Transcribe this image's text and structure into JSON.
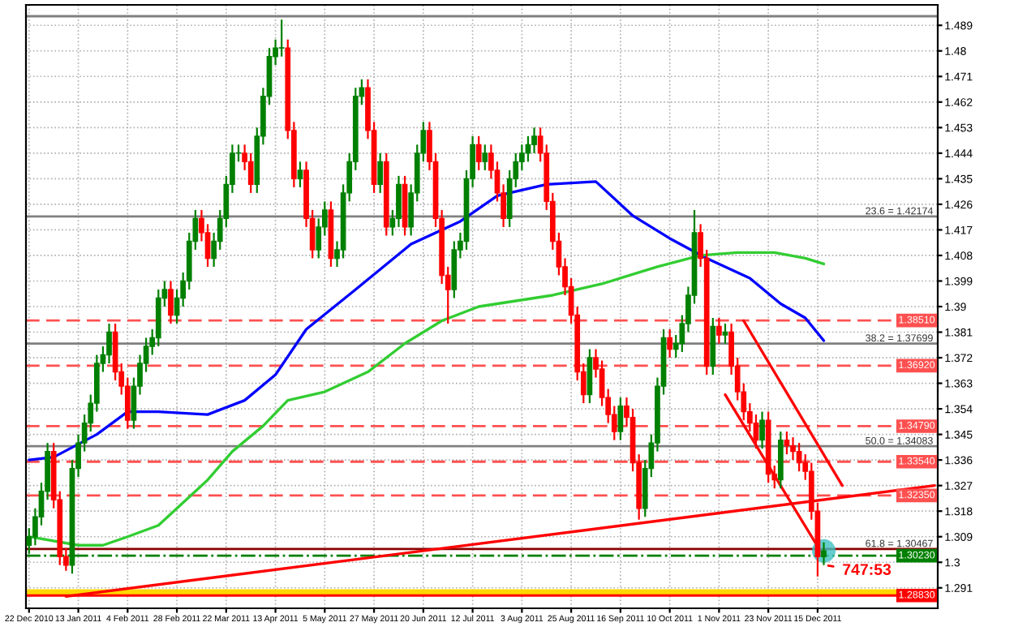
{
  "chart_data": {
    "type": "candlestick",
    "categories": [
      "22 Dec 2010",
      null,
      null,
      null,
      null,
      null,
      null,
      null,
      "13 Jan 2011",
      null,
      null,
      null,
      null,
      null,
      null,
      null,
      "4 Feb 2011",
      null,
      null,
      null,
      null,
      null,
      null,
      null,
      "28 Feb 2011",
      null,
      null,
      null,
      null,
      null,
      null,
      null,
      "22 Mar 2011",
      null,
      null,
      null,
      null,
      null,
      null,
      null,
      "13 Apr 2011",
      null,
      null,
      null,
      null,
      null,
      null,
      null,
      "5 May 2011",
      null,
      null,
      null,
      null,
      null,
      null,
      null,
      "27 May 2011",
      null,
      null,
      null,
      null,
      null,
      null,
      null,
      "20 Jun 2011",
      null,
      null,
      null,
      null,
      null,
      null,
      null,
      "12 Jul 2011",
      null,
      null,
      null,
      null,
      null,
      null,
      null,
      "3 Aug 2011",
      null,
      null,
      null,
      null,
      null,
      null,
      null,
      "25 Aug 2011",
      null,
      null,
      null,
      null,
      null,
      null,
      null,
      "16 Sep 2011",
      null,
      null,
      null,
      null,
      null,
      null,
      null,
      "10 Oct 2011",
      null,
      null,
      null,
      null,
      null,
      null,
      null,
      "1 Nov 2011",
      null,
      null,
      null,
      null,
      null,
      null,
      null,
      "23 Nov 2011",
      null,
      null,
      null,
      null,
      null,
      null,
      null,
      "15 Dec 2011",
      null,
      null,
      null,
      null,
      null,
      null,
      null,
      null,
      null,
      null,
      null,
      null,
      null,
      null,
      null,
      null,
      null,
      null,
      null
    ],
    "ohlc": [
      [
        1.306,
        1.312,
        1.303,
        1.309
      ],
      [
        1.309,
        1.319,
        1.306,
        1.316
      ],
      [
        1.316,
        1.328,
        1.313,
        1.325
      ],
      [
        1.325,
        1.342,
        1.322,
        1.339
      ],
      [
        1.339,
        1.342,
        1.319,
        1.322
      ],
      [
        1.322,
        1.325,
        1.299,
        1.302
      ],
      [
        1.302,
        1.305,
        1.297,
        1.299
      ],
      [
        1.299,
        1.336,
        1.296,
        1.333
      ],
      [
        1.333,
        1.345,
        1.33,
        1.342
      ],
      [
        1.342,
        1.352,
        1.339,
        1.349
      ],
      [
        1.349,
        1.359,
        1.346,
        1.356
      ],
      [
        1.356,
        1.373,
        1.353,
        1.37
      ],
      [
        1.37,
        1.376,
        1.367,
        1.373
      ],
      [
        1.373,
        1.384,
        1.37,
        1.381
      ],
      [
        1.381,
        1.384,
        1.364,
        1.367
      ],
      [
        1.367,
        1.37,
        1.359,
        1.362
      ],
      [
        1.362,
        1.365,
        1.347,
        1.35
      ],
      [
        1.35,
        1.365,
        1.347,
        1.362
      ],
      [
        1.362,
        1.373,
        1.359,
        1.37
      ],
      [
        1.37,
        1.379,
        1.367,
        1.376
      ],
      [
        1.376,
        1.382,
        1.373,
        1.379
      ],
      [
        1.379,
        1.396,
        1.376,
        1.393
      ],
      [
        1.393,
        1.399,
        1.39,
        1.396
      ],
      [
        1.396,
        1.399,
        1.384,
        1.387
      ],
      [
        1.387,
        1.396,
        1.384,
        1.393
      ],
      [
        1.393,
        1.402,
        1.39,
        1.399
      ],
      [
        1.399,
        1.416,
        1.396,
        1.413
      ],
      [
        1.413,
        1.424,
        1.41,
        1.421
      ],
      [
        1.421,
        1.424,
        1.413,
        1.416
      ],
      [
        1.416,
        1.419,
        1.404,
        1.407
      ],
      [
        1.407,
        1.416,
        1.404,
        1.413
      ],
      [
        1.413,
        1.424,
        1.41,
        1.421
      ],
      [
        1.421,
        1.436,
        1.418,
        1.433
      ],
      [
        1.433,
        1.447,
        1.43,
        1.444
      ],
      [
        1.444,
        1.447,
        1.441,
        1.444
      ],
      [
        1.444,
        1.447,
        1.438,
        1.441
      ],
      [
        1.441,
        1.444,
        1.43,
        1.433
      ],
      [
        1.433,
        1.453,
        1.43,
        1.45
      ],
      [
        1.45,
        1.467,
        1.447,
        1.464
      ],
      [
        1.464,
        1.481,
        1.461,
        1.478
      ],
      [
        1.478,
        1.484,
        1.475,
        1.481
      ],
      [
        1.481,
        1.491,
        1.478,
        1.481
      ],
      [
        1.481,
        1.484,
        1.449,
        1.452
      ],
      [
        1.452,
        1.455,
        1.432,
        1.435
      ],
      [
        1.435,
        1.441,
        1.432,
        1.438
      ],
      [
        1.438,
        1.441,
        1.418,
        1.421
      ],
      [
        1.421,
        1.424,
        1.407,
        1.41
      ],
      [
        1.41,
        1.421,
        1.407,
        1.418
      ],
      [
        1.418,
        1.427,
        1.415,
        1.424
      ],
      [
        1.424,
        1.427,
        1.404,
        1.407
      ],
      [
        1.407,
        1.413,
        1.404,
        1.41
      ],
      [
        1.41,
        1.433,
        1.407,
        1.43
      ],
      [
        1.43,
        1.444,
        1.427,
        1.441
      ],
      [
        1.441,
        1.467,
        1.438,
        1.464
      ],
      [
        1.464,
        1.47,
        1.461,
        1.467
      ],
      [
        1.467,
        1.47,
        1.449,
        1.452
      ],
      [
        1.452,
        1.455,
        1.43,
        1.433
      ],
      [
        1.433,
        1.444,
        1.43,
        1.441
      ],
      [
        1.441,
        1.444,
        1.415,
        1.418
      ],
      [
        1.418,
        1.424,
        1.415,
        1.421
      ],
      [
        1.421,
        1.436,
        1.418,
        1.433
      ],
      [
        1.433,
        1.436,
        1.415,
        1.418
      ],
      [
        1.418,
        1.433,
        1.415,
        1.43
      ],
      [
        1.43,
        1.447,
        1.427,
        1.444
      ],
      [
        1.444,
        1.455,
        1.441,
        1.452
      ],
      [
        1.452,
        1.455,
        1.438,
        1.441
      ],
      [
        1.441,
        1.444,
        1.418,
        1.421
      ],
      [
        1.421,
        1.424,
        1.398,
        1.401
      ],
      [
        1.401,
        1.404,
        1.384,
        1.396
      ],
      [
        1.396,
        1.413,
        1.393,
        1.41
      ],
      [
        1.41,
        1.416,
        1.407,
        1.413
      ],
      [
        1.413,
        1.438,
        1.41,
        1.435
      ],
      [
        1.435,
        1.45,
        1.432,
        1.447
      ],
      [
        1.447,
        1.45,
        1.438,
        1.441
      ],
      [
        1.441,
        1.447,
        1.438,
        1.444
      ],
      [
        1.444,
        1.447,
        1.435,
        1.438
      ],
      [
        1.438,
        1.441,
        1.427,
        1.43
      ],
      [
        1.43,
        1.433,
        1.418,
        1.421
      ],
      [
        1.421,
        1.438,
        1.418,
        1.435
      ],
      [
        1.435,
        1.444,
        1.432,
        1.441
      ],
      [
        1.441,
        1.447,
        1.438,
        1.444
      ],
      [
        1.444,
        1.45,
        1.441,
        1.447
      ],
      [
        1.447,
        1.453,
        1.444,
        1.45
      ],
      [
        1.45,
        1.453,
        1.441,
        1.444
      ],
      [
        1.444,
        1.447,
        1.424,
        1.427
      ],
      [
        1.427,
        1.43,
        1.41,
        1.413
      ],
      [
        1.413,
        1.416,
        1.401,
        1.404
      ],
      [
        1.404,
        1.407,
        1.394,
        1.397
      ],
      [
        1.397,
        1.4,
        1.384,
        1.387
      ],
      [
        1.387,
        1.39,
        1.364,
        1.367
      ],
      [
        1.367,
        1.37,
        1.356,
        1.359
      ],
      [
        1.359,
        1.375,
        1.356,
        1.372
      ],
      [
        1.372,
        1.375,
        1.365,
        1.368
      ],
      [
        1.368,
        1.371,
        1.355,
        1.358
      ],
      [
        1.358,
        1.361,
        1.349,
        1.352
      ],
      [
        1.352,
        1.355,
        1.343,
        1.346
      ],
      [
        1.346,
        1.358,
        1.343,
        1.355
      ],
      [
        1.355,
        1.358,
        1.348,
        1.351
      ],
      [
        1.351,
        1.354,
        1.332,
        1.335
      ],
      [
        1.335,
        1.338,
        1.315,
        1.319
      ],
      [
        1.319,
        1.336,
        1.316,
        1.333
      ],
      [
        1.333,
        1.345,
        1.33,
        1.342
      ],
      [
        1.342,
        1.365,
        1.339,
        1.362
      ],
      [
        1.362,
        1.382,
        1.359,
        1.379
      ],
      [
        1.379,
        1.382,
        1.372,
        1.375
      ],
      [
        1.375,
        1.38,
        1.372,
        1.377
      ],
      [
        1.377,
        1.387,
        1.374,
        1.384
      ],
      [
        1.384,
        1.397,
        1.381,
        1.394
      ],
      [
        1.394,
        1.424,
        1.391,
        1.416
      ],
      [
        1.416,
        1.419,
        1.404,
        1.407
      ],
      [
        1.407,
        1.41,
        1.366,
        1.369
      ],
      [
        1.369,
        1.386,
        1.366,
        1.383
      ],
      [
        1.383,
        1.386,
        1.377,
        1.38
      ],
      [
        1.38,
        1.384,
        1.377,
        1.381
      ],
      [
        1.381,
        1.384,
        1.366,
        1.369
      ],
      [
        1.369,
        1.372,
        1.357,
        1.36
      ],
      [
        1.36,
        1.363,
        1.35,
        1.353
      ],
      [
        1.353,
        1.356,
        1.346,
        1.349
      ],
      [
        1.349,
        1.352,
        1.34,
        1.343
      ],
      [
        1.343,
        1.353,
        1.34,
        1.35
      ],
      [
        1.35,
        1.353,
        1.328,
        1.331
      ],
      [
        1.331,
        1.334,
        1.326,
        1.329
      ],
      [
        1.329,
        1.346,
        1.326,
        1.343
      ],
      [
        1.343,
        1.346,
        1.338,
        1.341
      ],
      [
        1.341,
        1.344,
        1.336,
        1.339
      ],
      [
        1.339,
        1.342,
        1.332,
        1.335
      ],
      [
        1.335,
        1.338,
        1.329,
        1.332
      ],
      [
        1.332,
        1.335,
        1.315,
        1.318
      ],
      [
        1.318,
        1.321,
        1.295,
        1.302
      ],
      [
        1.302,
        1.307,
        1.299,
        1.304
      ],
      null,
      null,
      null,
      null,
      null,
      null,
      null,
      null,
      null,
      null,
      null,
      null,
      null,
      null,
      null,
      null,
      null,
      null
    ],
    "series": [
      {
        "type": "line",
        "color": "#0000ff",
        "values": [
          1.336,
          null,
          null,
          null,
          1.337,
          null,
          null,
          null,
          null,
          null,
          null,
          1.345,
          null,
          null,
          null,
          null,
          1.353,
          null,
          null,
          null,
          null,
          1.353,
          null,
          null,
          null,
          null,
          null,
          null,
          null,
          1.352,
          null,
          null,
          null,
          null,
          null,
          1.357,
          null,
          null,
          null,
          null,
          1.366,
          null,
          null,
          null,
          null,
          1.382,
          null,
          null,
          null,
          null,
          null,
          null,
          null,
          1.396,
          null,
          null,
          null,
          null,
          null,
          null,
          null,
          null,
          1.412,
          null,
          null,
          null,
          null,
          null,
          null,
          null,
          1.42,
          null,
          null,
          null,
          null,
          null,
          1.429,
          null,
          null,
          null,
          null,
          null,
          null,
          null,
          1.433,
          null,
          null,
          null,
          null,
          null,
          null,
          null,
          1.434,
          null,
          null,
          null,
          null,
          null,
          1.422,
          null,
          null,
          null,
          null,
          null,
          1.414,
          null,
          null,
          null,
          null,
          null,
          1.407,
          null,
          null,
          null,
          null,
          null,
          null,
          1.4,
          null,
          null,
          null,
          null,
          1.391,
          null,
          null,
          null,
          1.386,
          null,
          null,
          1.378,
          null,
          null,
          null,
          null,
          null,
          null,
          null,
          null,
          null,
          null,
          null,
          null,
          null,
          null,
          null,
          null,
          null,
          null
        ]
      },
      {
        "type": "line",
        "color": "#32cd32",
        "values": [
          1.309,
          null,
          null,
          null,
          null,
          null,
          null,
          null,
          1.306,
          null,
          null,
          null,
          1.306,
          null,
          null,
          null,
          1.309,
          null,
          null,
          null,
          null,
          1.313,
          null,
          null,
          null,
          1.321,
          null,
          null,
          null,
          1.329,
          null,
          null,
          null,
          1.339,
          null,
          null,
          null,
          null,
          1.348,
          null,
          null,
          null,
          1.357,
          null,
          null,
          null,
          null,
          null,
          1.36,
          null,
          null,
          null,
          null,
          null,
          null,
          1.367,
          null,
          null,
          null,
          null,
          null,
          1.377,
          null,
          null,
          null,
          null,
          null,
          1.385,
          null,
          null,
          null,
          null,
          null,
          1.39,
          null,
          null,
          null,
          null,
          null,
          1.392,
          null,
          null,
          null,
          null,
          null,
          1.394,
          null,
          null,
          null,
          null,
          null,
          null,
          null,
          1.398,
          null,
          null,
          null,
          null,
          null,
          null,
          null,
          null,
          1.404,
          null,
          null,
          null,
          null,
          null,
          null,
          1.408,
          null,
          null,
          null,
          null,
          null,
          1.409,
          null,
          null,
          null,
          null,
          null,
          1.409,
          null,
          null,
          null,
          null,
          1.407,
          null,
          null,
          1.405,
          null,
          null,
          null,
          null,
          null,
          null,
          null,
          null,
          null,
          null,
          null,
          null,
          null,
          null,
          null,
          null,
          null,
          null
        ]
      },
      {
        "type": "line",
        "color": "#ff0000",
        "values": [
          null,
          null,
          null,
          null,
          null,
          null,
          1.288,
          null,
          null,
          null,
          null,
          null,
          null,
          null,
          null,
          null,
          null,
          null,
          null,
          null,
          null,
          null,
          null,
          null,
          null,
          null,
          null,
          null,
          null,
          null,
          null,
          null,
          null,
          null,
          null,
          null,
          null,
          null,
          null,
          null,
          null,
          null,
          null,
          null,
          null,
          null,
          null,
          null,
          null,
          null,
          null,
          null,
          null,
          null,
          null,
          null,
          null,
          null,
          null,
          null,
          null,
          null,
          null,
          null,
          null,
          null,
          null,
          null,
          null,
          null,
          null,
          null,
          null,
          null,
          null,
          null,
          null,
          null,
          null,
          null,
          null,
          null,
          null,
          null,
          null,
          null,
          null,
          null,
          null,
          null,
          null,
          null,
          null,
          null,
          null,
          null,
          null,
          null,
          null,
          null,
          null,
          null,
          null,
          null,
          null,
          null,
          null,
          null,
          null,
          null,
          null,
          null,
          null,
          null,
          null,
          null,
          null,
          null,
          null,
          null,
          null,
          null,
          null,
          null,
          null,
          null,
          null,
          null,
          null,
          null,
          null,
          null,
          null,
          null,
          null,
          null,
          null,
          null,
          null,
          null,
          null,
          null,
          null,
          null,
          null,
          null,
          null,
          1.327
        ]
      },
      {
        "type": "line",
        "color": "#ff0000",
        "values": [
          null,
          null,
          null,
          null,
          null,
          null,
          null,
          null,
          null,
          null,
          null,
          null,
          null,
          null,
          null,
          null,
          null,
          null,
          null,
          null,
          null,
          null,
          null,
          null,
          null,
          null,
          null,
          null,
          null,
          null,
          null,
          null,
          null,
          null,
          null,
          null,
          null,
          null,
          null,
          null,
          null,
          null,
          null,
          null,
          null,
          null,
          null,
          null,
          null,
          null,
          null,
          null,
          null,
          null,
          null,
          null,
          null,
          null,
          null,
          null,
          null,
          null,
          null,
          null,
          null,
          null,
          null,
          null,
          null,
          null,
          null,
          null,
          null,
          null,
          null,
          null,
          null,
          null,
          null,
          null,
          null,
          null,
          null,
          null,
          null,
          null,
          null,
          null,
          null,
          null,
          null,
          null,
          null,
          null,
          null,
          null,
          null,
          null,
          null,
          null,
          null,
          null,
          null,
          null,
          null,
          null,
          null,
          null,
          null,
          null,
          null,
          null,
          null,
          1.359,
          null,
          null,
          null,
          null,
          null,
          null,
          null,
          null,
          null,
          null,
          null,
          null,
          null,
          null,
          null,
          1.302,
          null,
          null,
          null,
          null,
          null,
          null,
          null,
          null,
          null,
          null,
          null,
          null,
          null,
          null,
          null,
          null,
          null,
          null
        ]
      },
      {
        "type": "line",
        "color": "#ff0000",
        "values": [
          null,
          null,
          null,
          null,
          null,
          null,
          null,
          null,
          null,
          null,
          null,
          null,
          null,
          null,
          null,
          null,
          null,
          null,
          null,
          null,
          null,
          null,
          null,
          null,
          null,
          null,
          null,
          null,
          null,
          null,
          null,
          null,
          null,
          null,
          null,
          null,
          null,
          null,
          null,
          null,
          null,
          null,
          null,
          null,
          null,
          null,
          null,
          null,
          null,
          null,
          null,
          null,
          null,
          null,
          null,
          null,
          null,
          null,
          null,
          null,
          null,
          null,
          null,
          null,
          null,
          null,
          null,
          null,
          null,
          null,
          null,
          null,
          null,
          null,
          null,
          null,
          null,
          null,
          null,
          null,
          null,
          null,
          null,
          null,
          null,
          null,
          null,
          null,
          null,
          null,
          null,
          null,
          null,
          null,
          null,
          null,
          null,
          null,
          null,
          null,
          null,
          null,
          null,
          null,
          null,
          null,
          null,
          null,
          null,
          null,
          null,
          null,
          null,
          null,
          null,
          null,
          1.385,
          null,
          null,
          null,
          null,
          null,
          null,
          null,
          null,
          null,
          null,
          null,
          null,
          null,
          null,
          null,
          1.327,
          null,
          null,
          null,
          null,
          null,
          null,
          null,
          null,
          null,
          null,
          null,
          null,
          null,
          null,
          null
        ]
      }
    ],
    "ylim": [
      1.2838,
      1.4962
    ],
    "yticks": [
      1.291,
      1.3,
      1.309,
      1.318,
      1.327,
      1.336,
      1.345,
      1.354,
      1.363,
      1.372,
      1.381,
      1.39,
      1.399,
      1.408,
      1.417,
      1.426,
      1.435,
      1.444,
      1.453,
      1.462,
      1.471,
      1.48,
      1.489
    ],
    "grid": true,
    "ref_lines": [
      {
        "axis": "y",
        "value": 1.4922,
        "color": "#808080",
        "line_style": "solid"
      },
      {
        "axis": "y",
        "value": 1.42174,
        "label": "23.6 = 1.42174",
        "color": "#808080",
        "line_style": "solid"
      },
      {
        "axis": "y",
        "value": 1.37699,
        "label": "38.2 = 1.37699",
        "color": "#808080",
        "line_style": "solid"
      },
      {
        "axis": "y",
        "value": 1.34083,
        "label": "50.0 = 1.34083",
        "color": "#808080",
        "line_style": "solid"
      },
      {
        "axis": "y",
        "value": 1.30467,
        "label": "61.8 = 1.30467",
        "color": "#8b0000",
        "line_style": "solid"
      },
      {
        "axis": "y",
        "value": 1.3851,
        "label": "1.38510",
        "color": "#ff5050",
        "line_style": "dashed"
      },
      {
        "axis": "y",
        "value": 1.3692,
        "label": "1.36920",
        "color": "#ff5050",
        "line_style": "dashed"
      },
      {
        "axis": "y",
        "value": 1.3479,
        "label": "1.34790",
        "color": "#ff5050",
        "line_style": "dashed"
      },
      {
        "axis": "y",
        "value": 1.3354,
        "label": "1.33540",
        "color": "#ff5050",
        "line_style": "dashed"
      },
      {
        "axis": "y",
        "value": 1.3235,
        "label": "1.32350",
        "color": "#ff5050",
        "line_style": "dashed"
      },
      {
        "axis": "y",
        "value": 1.3023,
        "label": "1.30230",
        "color": "#008000",
        "line_style": "dashdot"
      },
      {
        "axis": "y",
        "value": 1.2883,
        "label": "1.28830",
        "color": "#ff0000",
        "line_style": "solid"
      }
    ],
    "bands": [
      {
        "axis": "y",
        "from": 1.2883,
        "to": 1.2905,
        "color": "#ffd700"
      }
    ],
    "annotations": [
      "747:53"
    ]
  }
}
